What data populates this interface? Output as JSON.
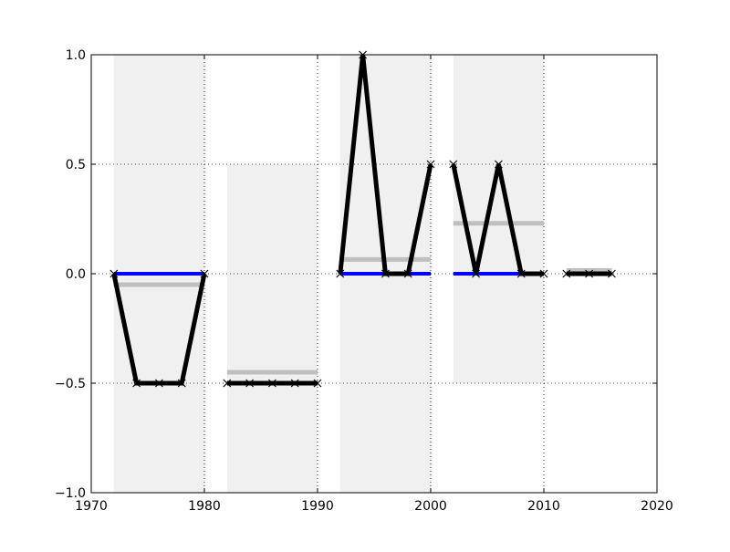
{
  "chart_data": {
    "type": "line",
    "title": "",
    "xlabel": "",
    "ylabel": "",
    "xlim": [
      1970,
      2020
    ],
    "ylim": [
      -1.0,
      1.0
    ],
    "x_ticks": [
      1970,
      1980,
      1990,
      2000,
      2010,
      2020
    ],
    "x_tick_labels": [
      "1970",
      "1980",
      "1990",
      "2000",
      "2010",
      "2020"
    ],
    "y_ticks": [
      -1.0,
      -0.5,
      0.0,
      0.5,
      1.0
    ],
    "y_tick_labels": [
      "−1.0",
      "−0.5",
      "0.0",
      "0.5",
      "1.0"
    ],
    "grid": true,
    "grid_style": "dotted",
    "legend": "none",
    "colors": {
      "main_line": "#000000",
      "zero_line": "#0000ff",
      "mean_line": "#bfbfbf",
      "span": "#f0f0f0"
    },
    "shaded_spans": [
      {
        "x0": 1972,
        "x1": 1980,
        "y0": -1.0,
        "y1": 1.0
      },
      {
        "x0": 1982,
        "x1": 1990,
        "y0": -1.0,
        "y1": 0.5
      },
      {
        "x0": 1992,
        "x1": 2000,
        "y0": -1.0,
        "y1": 1.0
      },
      {
        "x0": 2002,
        "x1": 2010,
        "y0": -0.5,
        "y1": 1.0
      }
    ],
    "series": [
      {
        "x": [
          1972,
          1974,
          1976,
          1978,
          1980
        ],
        "values": [
          0.0,
          -0.5,
          -0.5,
          -0.5,
          0.0
        ],
        "zero_line": true,
        "mean": -0.05
      },
      {
        "x": [
          1982,
          1984,
          1986,
          1988,
          1990
        ],
        "values": [
          -0.5,
          -0.5,
          -0.5,
          -0.5,
          -0.5
        ],
        "zero_line": false,
        "mean": -0.45
      },
      {
        "x": [
          1992,
          1994,
          1996,
          1998,
          2000
        ],
        "values": [
          0.0,
          1.0,
          0.0,
          0.0,
          0.5
        ],
        "zero_line": true,
        "mean": 0.065
      },
      {
        "x": [
          2002,
          2004,
          2006,
          2008,
          2010
        ],
        "values": [
          0.5,
          0.0,
          0.5,
          0.0,
          0.0
        ],
        "zero_line": true,
        "mean": 0.23
      },
      {
        "x": [
          2012,
          2014,
          2016
        ],
        "values": [
          0.0,
          0.0,
          0.0
        ],
        "zero_line": false,
        "mean": 0.015
      }
    ]
  }
}
